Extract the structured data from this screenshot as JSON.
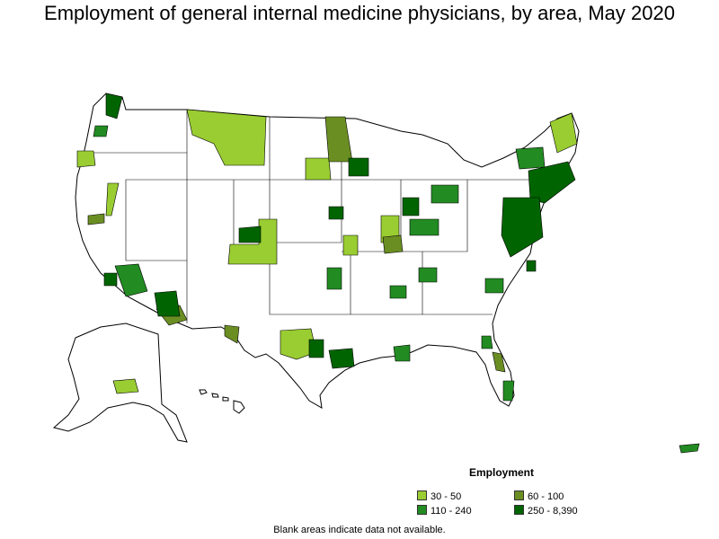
{
  "title": "Employment of general internal medicine physicians, by area, May 2020",
  "legend": {
    "title": "Employment",
    "items": [
      {
        "label": "30 - 50",
        "color": "#9acd32"
      },
      {
        "label": "60 - 100",
        "color": "#6b8e23"
      },
      {
        "label": "110 - 240",
        "color": "#228b22"
      },
      {
        "label": "250 - 8,390",
        "color": "#006400"
      }
    ]
  },
  "note": "Blank areas indicate data not available.",
  "colors": {
    "border": "#000000",
    "background": "#ffffff"
  }
}
